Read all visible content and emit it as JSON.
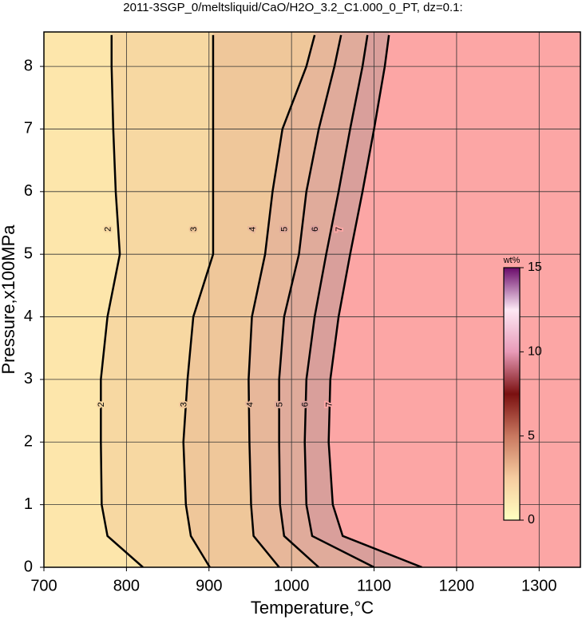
{
  "chart_data": {
    "type": "contour",
    "title": "2011-3SGP_0/meltsliquid/CaO/H2O_3.2_C1.000_0_PT, dz=0.1:",
    "x_label": "Temperature,°C",
    "y_label": "Pressure,x100MPa",
    "xlim": [
      700,
      1350
    ],
    "ylim": [
      0,
      8.55
    ],
    "xticks": [
      700,
      800,
      900,
      1000,
      1100,
      1200,
      1300
    ],
    "yticks": [
      0,
      1,
      2,
      3,
      4,
      5,
      6,
      7,
      8
    ],
    "grid": true,
    "pressures": [
      0,
      0.5,
      1,
      2,
      3,
      4,
      5,
      6,
      7,
      8,
      8.5
    ],
    "contours": [
      {
        "level": 2,
        "x": [
          820,
          777,
          770,
          769,
          769,
          777,
          792,
          787,
          784,
          782,
          782
        ]
      },
      {
        "level": 3,
        "x": [
          901,
          878,
          872,
          869,
          874,
          881,
          905,
          905,
          905,
          905,
          905
        ]
      },
      {
        "level": 4,
        "x": [
          985,
          954,
          951,
          949,
          948,
          952,
          968,
          977,
          989,
          1018,
          1028
        ]
      },
      {
        "level": 5,
        "x": [
          1033,
          991,
          986,
          985,
          985,
          991,
          1009,
          1018,
          1033,
          1052,
          1060
        ]
      },
      {
        "level": 6,
        "x": [
          1100,
          1025,
          1018,
          1016,
          1018,
          1028,
          1042,
          1057,
          1071,
          1086,
          1092
        ]
      },
      {
        "level": 7,
        "x": [
          1158,
          1062,
          1050,
          1045,
          1047,
          1057,
          1071,
          1086,
          1100,
          1113,
          1118
        ]
      }
    ],
    "region_colors": [
      "#fde6ab",
      "#f7d8a2",
      "#efc79a",
      "#e7b79a",
      "#e0ab9b",
      "#d99f9b",
      "#fca6a5"
    ],
    "colorbar": {
      "label": "wt%",
      "lim": [
        0,
        15
      ],
      "ticks": [
        0,
        5,
        10,
        15
      ],
      "colors": [
        "#ffffc0",
        "#f6cca0",
        "#c97860",
        "#7a1010",
        "#e89ab8",
        "#fde8f4",
        "#6a0a6a"
      ]
    }
  }
}
